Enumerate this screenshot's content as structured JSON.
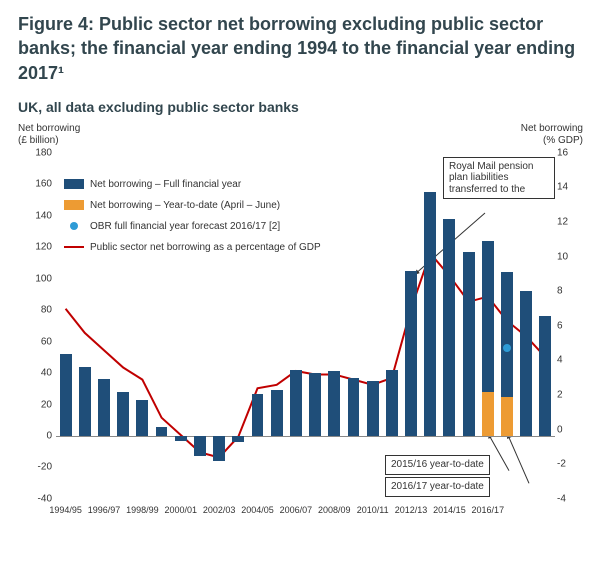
{
  "title": "Figure 4: Public sector net borrowing excluding public sector banks; the financial year ending 1994 to the financial year ending 2017¹",
  "subtitle": "UK, all data excluding public sector banks",
  "chart": {
    "type": "bar+line",
    "y_left": {
      "title_l1": "Net borrowing",
      "title_l2": "(£ billion)",
      "min": -40,
      "max": 180,
      "step": 20
    },
    "y_right": {
      "title_l1": "Net borrowing",
      "title_l2": "(% GDP)",
      "min": -4,
      "max": 16,
      "step": 2
    },
    "colors": {
      "bar_full": "#1f4e79",
      "bar_ytd": "#ed9b33",
      "line": "#c00000",
      "obr_dot": "#2e9bd6",
      "axis": "#888888",
      "text": "#333333",
      "title": "#32464e"
    },
    "x_labels": [
      "1994/95",
      "1996/97",
      "1998/99",
      "2000/01",
      "2002/03",
      "2004/05",
      "2006/07",
      "2008/09",
      "2010/11",
      "2012/13",
      "2014/15",
      "2016/17"
    ],
    "bars_full": [
      52,
      44,
      36,
      28,
      23,
      6,
      -3,
      -13,
      -16,
      -4,
      27,
      29,
      42,
      40,
      41,
      37,
      35,
      42,
      105,
      155,
      138,
      117,
      124,
      104,
      92,
      76
    ],
    "bars_ytd": {
      "22": 28,
      "23": 25
    },
    "obr_forecast": {
      "index": 23,
      "value": 56
    },
    "line_pct_gdp": [
      7.0,
      5.6,
      4.6,
      3.6,
      2.9,
      0.7,
      -0.3,
      -1.3,
      -1.6,
      -0.4,
      2.4,
      2.6,
      3.4,
      3.2,
      3.2,
      2.9,
      2.6,
      3.0,
      7.0,
      10.2,
      8.9,
      7.4,
      7.7,
      6.3,
      5.4,
      4.2
    ],
    "legend": [
      "Net borrowing – Full financial year",
      "Net borrowing – Year-to-date (April – June)",
      "OBR full financial year forecast 2016/17 [2]",
      "Public sector net borrowing as a percentage of GDP"
    ],
    "annot_royal": {
      "l1": "Royal Mail pension",
      "l2": "plan liabilities",
      "l3": "transferred to the"
    },
    "annot_1516": "2015/16 year-to-date",
    "annot_1617": "2016/17 year-to-date"
  }
}
